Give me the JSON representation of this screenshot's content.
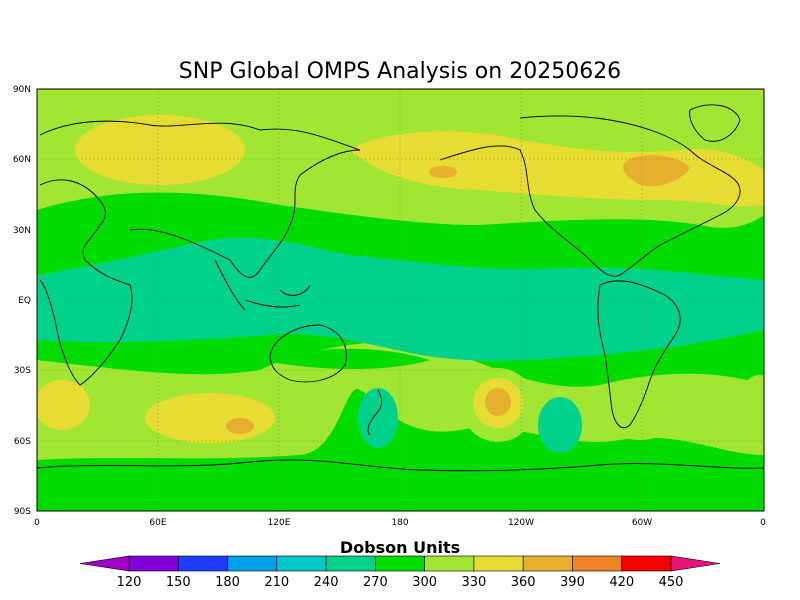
{
  "title": "SNP Global OMPS Analysis on 20250626",
  "map": {
    "lat_labels": [
      "90N",
      "60N",
      "30N",
      "EQ",
      "30S",
      "60S",
      "90S"
    ],
    "lon_labels": [
      "0",
      "60E",
      "120E",
      "180",
      "120W",
      "60W",
      "0"
    ],
    "grid": "dotted"
  },
  "colorbar": {
    "title": "Dobson Units",
    "tick_labels": [
      "120",
      "150",
      "180",
      "210",
      "240",
      "270",
      "300",
      "330",
      "360",
      "390",
      "420",
      "450"
    ],
    "colors": [
      "#a000c8",
      "#8200dc",
      "#1e3cff",
      "#00a0e6",
      "#00c8c8",
      "#00d28c",
      "#00dc00",
      "#a0e632",
      "#e6dc32",
      "#e6af2d",
      "#f08228",
      "#fa0000",
      "#e6147a"
    ]
  },
  "field_colors": {
    "c270": "#00d28c",
    "c300": "#00dc00",
    "c330": "#a0e632",
    "c360": "#e6dc32",
    "c390": "#e6af2d",
    "c420": "#f08228"
  }
}
